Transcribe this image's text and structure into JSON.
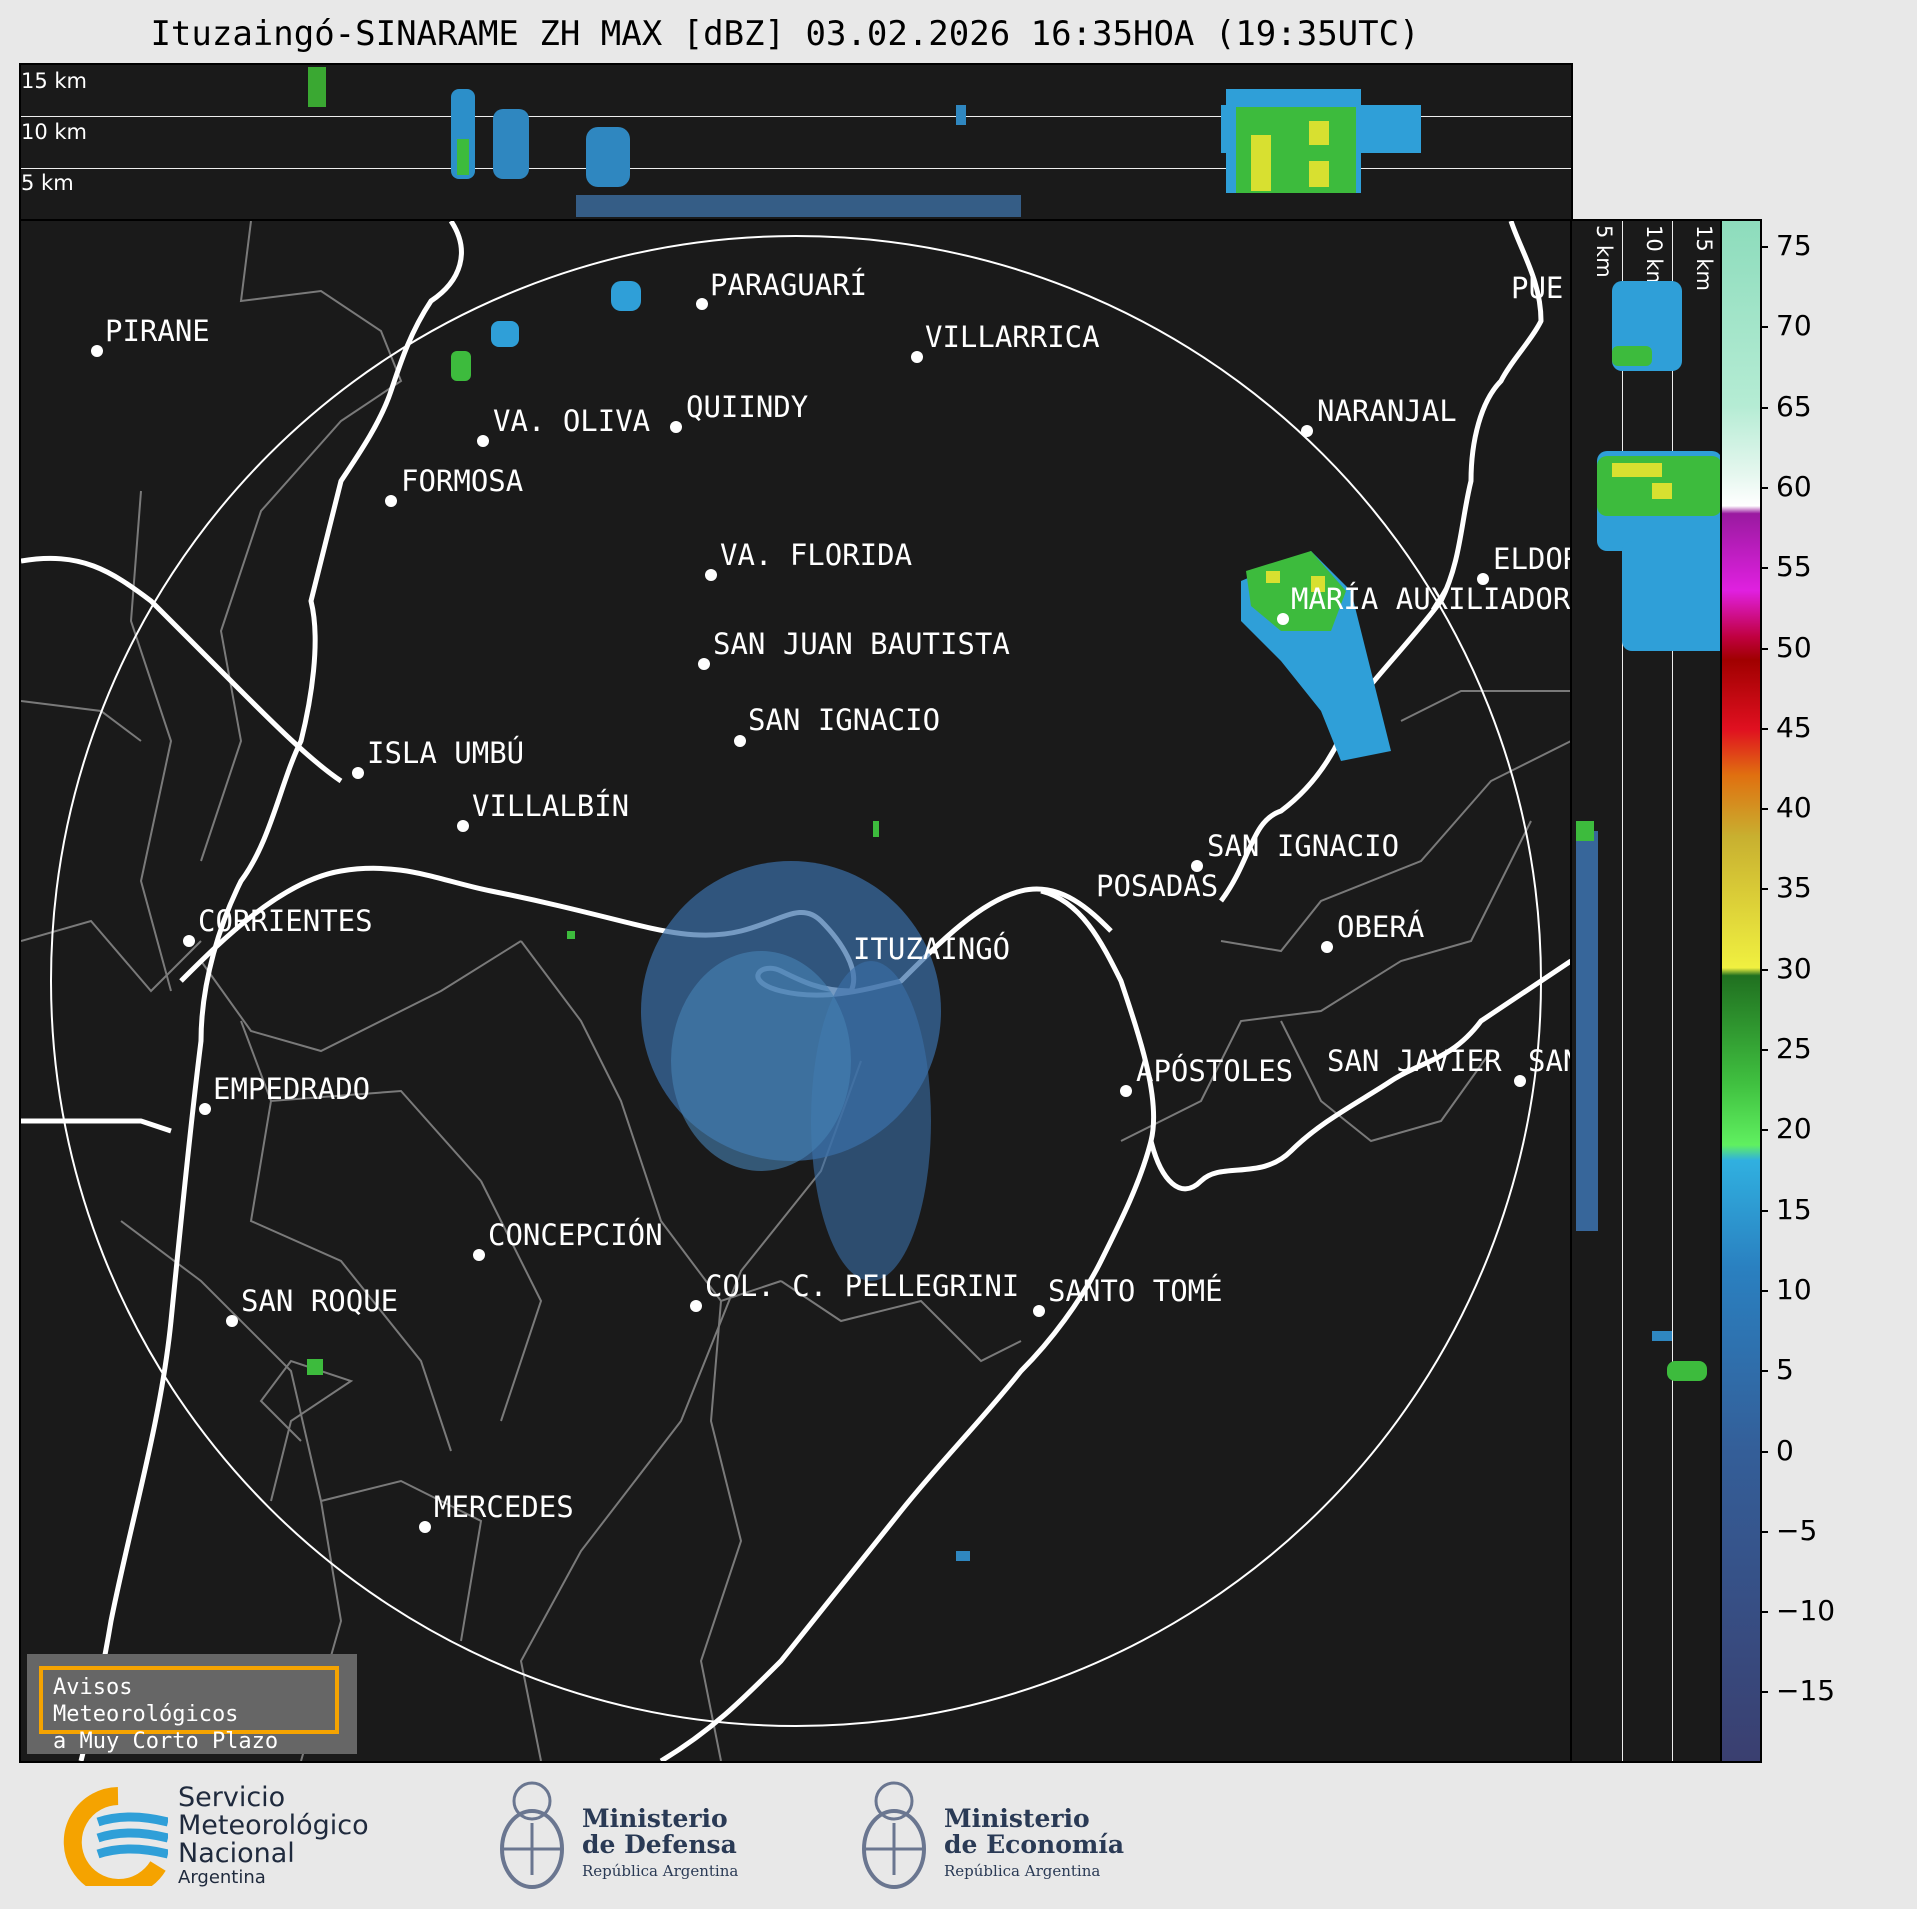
{
  "title": "Ituzaingó-SINARAME ZH MAX [dBZ] 03.02.2026 16:35HOA (19:35UTC)",
  "height_labels": {
    "h15": "15 km",
    "h10": "10 km",
    "h5": "5 km"
  },
  "cities": [
    {
      "name": "PARAGUARÍ"
    },
    {
      "name": "PIRANE"
    },
    {
      "name": "VILLARRICA"
    },
    {
      "name": "VA. OLIVA"
    },
    {
      "name": "QUIINDY"
    },
    {
      "name": "FORMOSA"
    },
    {
      "name": "NARANJAL"
    },
    {
      "name": "VA. FLORIDA"
    },
    {
      "name": "ELDOR"
    },
    {
      "name": "MARÍA AUXILIADOR"
    },
    {
      "name": "SAN JUAN BAUTISTA"
    },
    {
      "name": "SAN IGNACIO"
    },
    {
      "name": "ISLA UMBÚ"
    },
    {
      "name": "VILLALBÍN"
    },
    {
      "name": "SAN IGNACIO"
    },
    {
      "name": "POSADAS"
    },
    {
      "name": "CORRIENTES"
    },
    {
      "name": "ITUZAINGÓ"
    },
    {
      "name": "OBERÁ"
    },
    {
      "name": "APÓSTOLES"
    },
    {
      "name": "SAN JAVIER"
    },
    {
      "name": "SAN"
    },
    {
      "name": "EMPEDRADO"
    },
    {
      "name": "CONCEPCIÓN"
    },
    {
      "name": "COL. C. PELLEGRINI"
    },
    {
      "name": "SANTO TOMÉ"
    },
    {
      "name": "SAN ROQUE"
    },
    {
      "name": "MERCEDES"
    },
    {
      "name": "PUE"
    }
  ],
  "colorbar": {
    "unit": "dBZ",
    "ticks": [
      "75",
      "70",
      "65",
      "60",
      "55",
      "50",
      "45",
      "40",
      "35",
      "30",
      "25",
      "20",
      "15",
      "10",
      "5",
      "0",
      "−5",
      "−10",
      "−15"
    ]
  },
  "avisos": {
    "line1": "Avisos Meteorológicos",
    "line2": "a Muy Corto Plazo"
  },
  "logos": {
    "smn": {
      "line1": "Servicio",
      "line2": "Meteorológico",
      "line3": "Nacional",
      "line4": "Argentina",
      "icon": "smn-logo-icon"
    },
    "defensa": {
      "line1": "Ministerio",
      "line2": "de Defensa",
      "line3": "República Argentina",
      "icon": "coat-of-arms-icon"
    },
    "economia": {
      "line1": "Ministerio",
      "line2": "de Economía",
      "line3": "República Argentina",
      "icon": "coat-of-arms-icon"
    }
  },
  "colors": {
    "panel_bg": "#1a1a1a",
    "border_river": "#ffffff",
    "avisos_border": "#f5a300"
  }
}
